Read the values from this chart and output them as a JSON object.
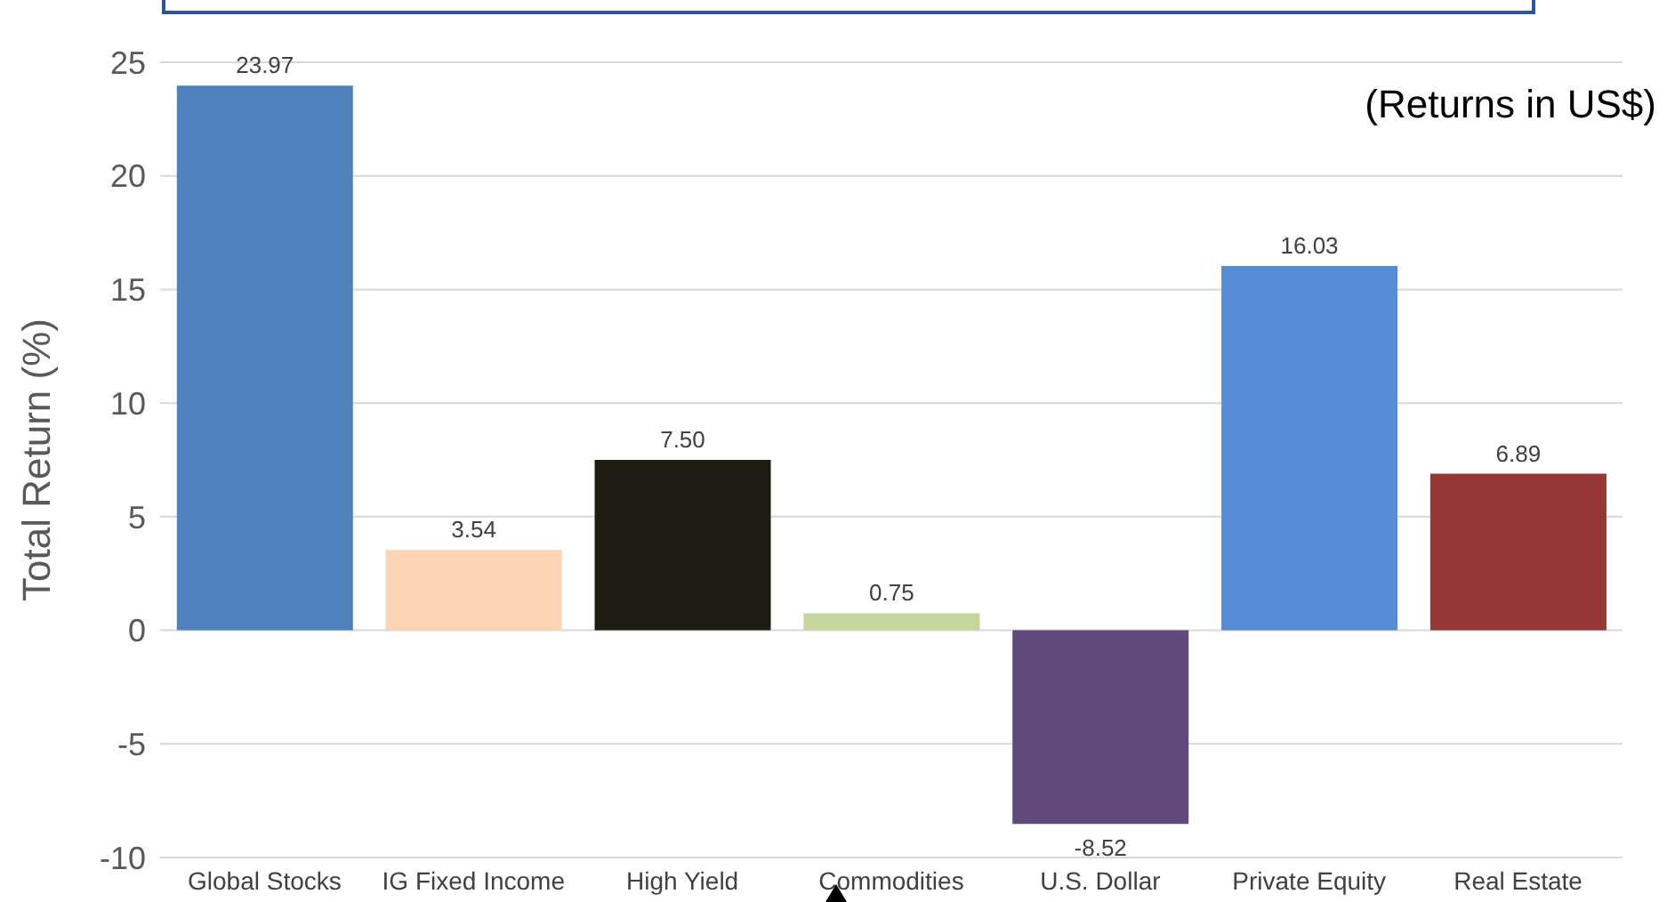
{
  "chart_data": {
    "type": "bar",
    "categories": [
      "Global Stocks",
      "IG Fixed Income",
      "High Yield",
      "Commodities",
      "U.S. Dollar",
      "Private Equity",
      "Real Estate"
    ],
    "values": [
      23.97,
      3.54,
      7.5,
      0.75,
      -8.52,
      16.03,
      6.89
    ],
    "value_labels": [
      "23.97",
      "3.54",
      "7.50",
      "0.75",
      "-8.52",
      "16.03",
      "6.89"
    ],
    "colors": [
      "#4f81bd",
      "#fcd5b4",
      "#1f1c12",
      "#c3d69b",
      "#604a7b",
      "#558ed5",
      "#953735"
    ],
    "ylabel": "Total Return (%)",
    "annotations": [
      "(Returns in US$)"
    ],
    "ylim": [
      -10,
      25
    ],
    "yticks": [
      -10,
      -5,
      0,
      5,
      10,
      15,
      20,
      25
    ],
    "grid": "y"
  }
}
